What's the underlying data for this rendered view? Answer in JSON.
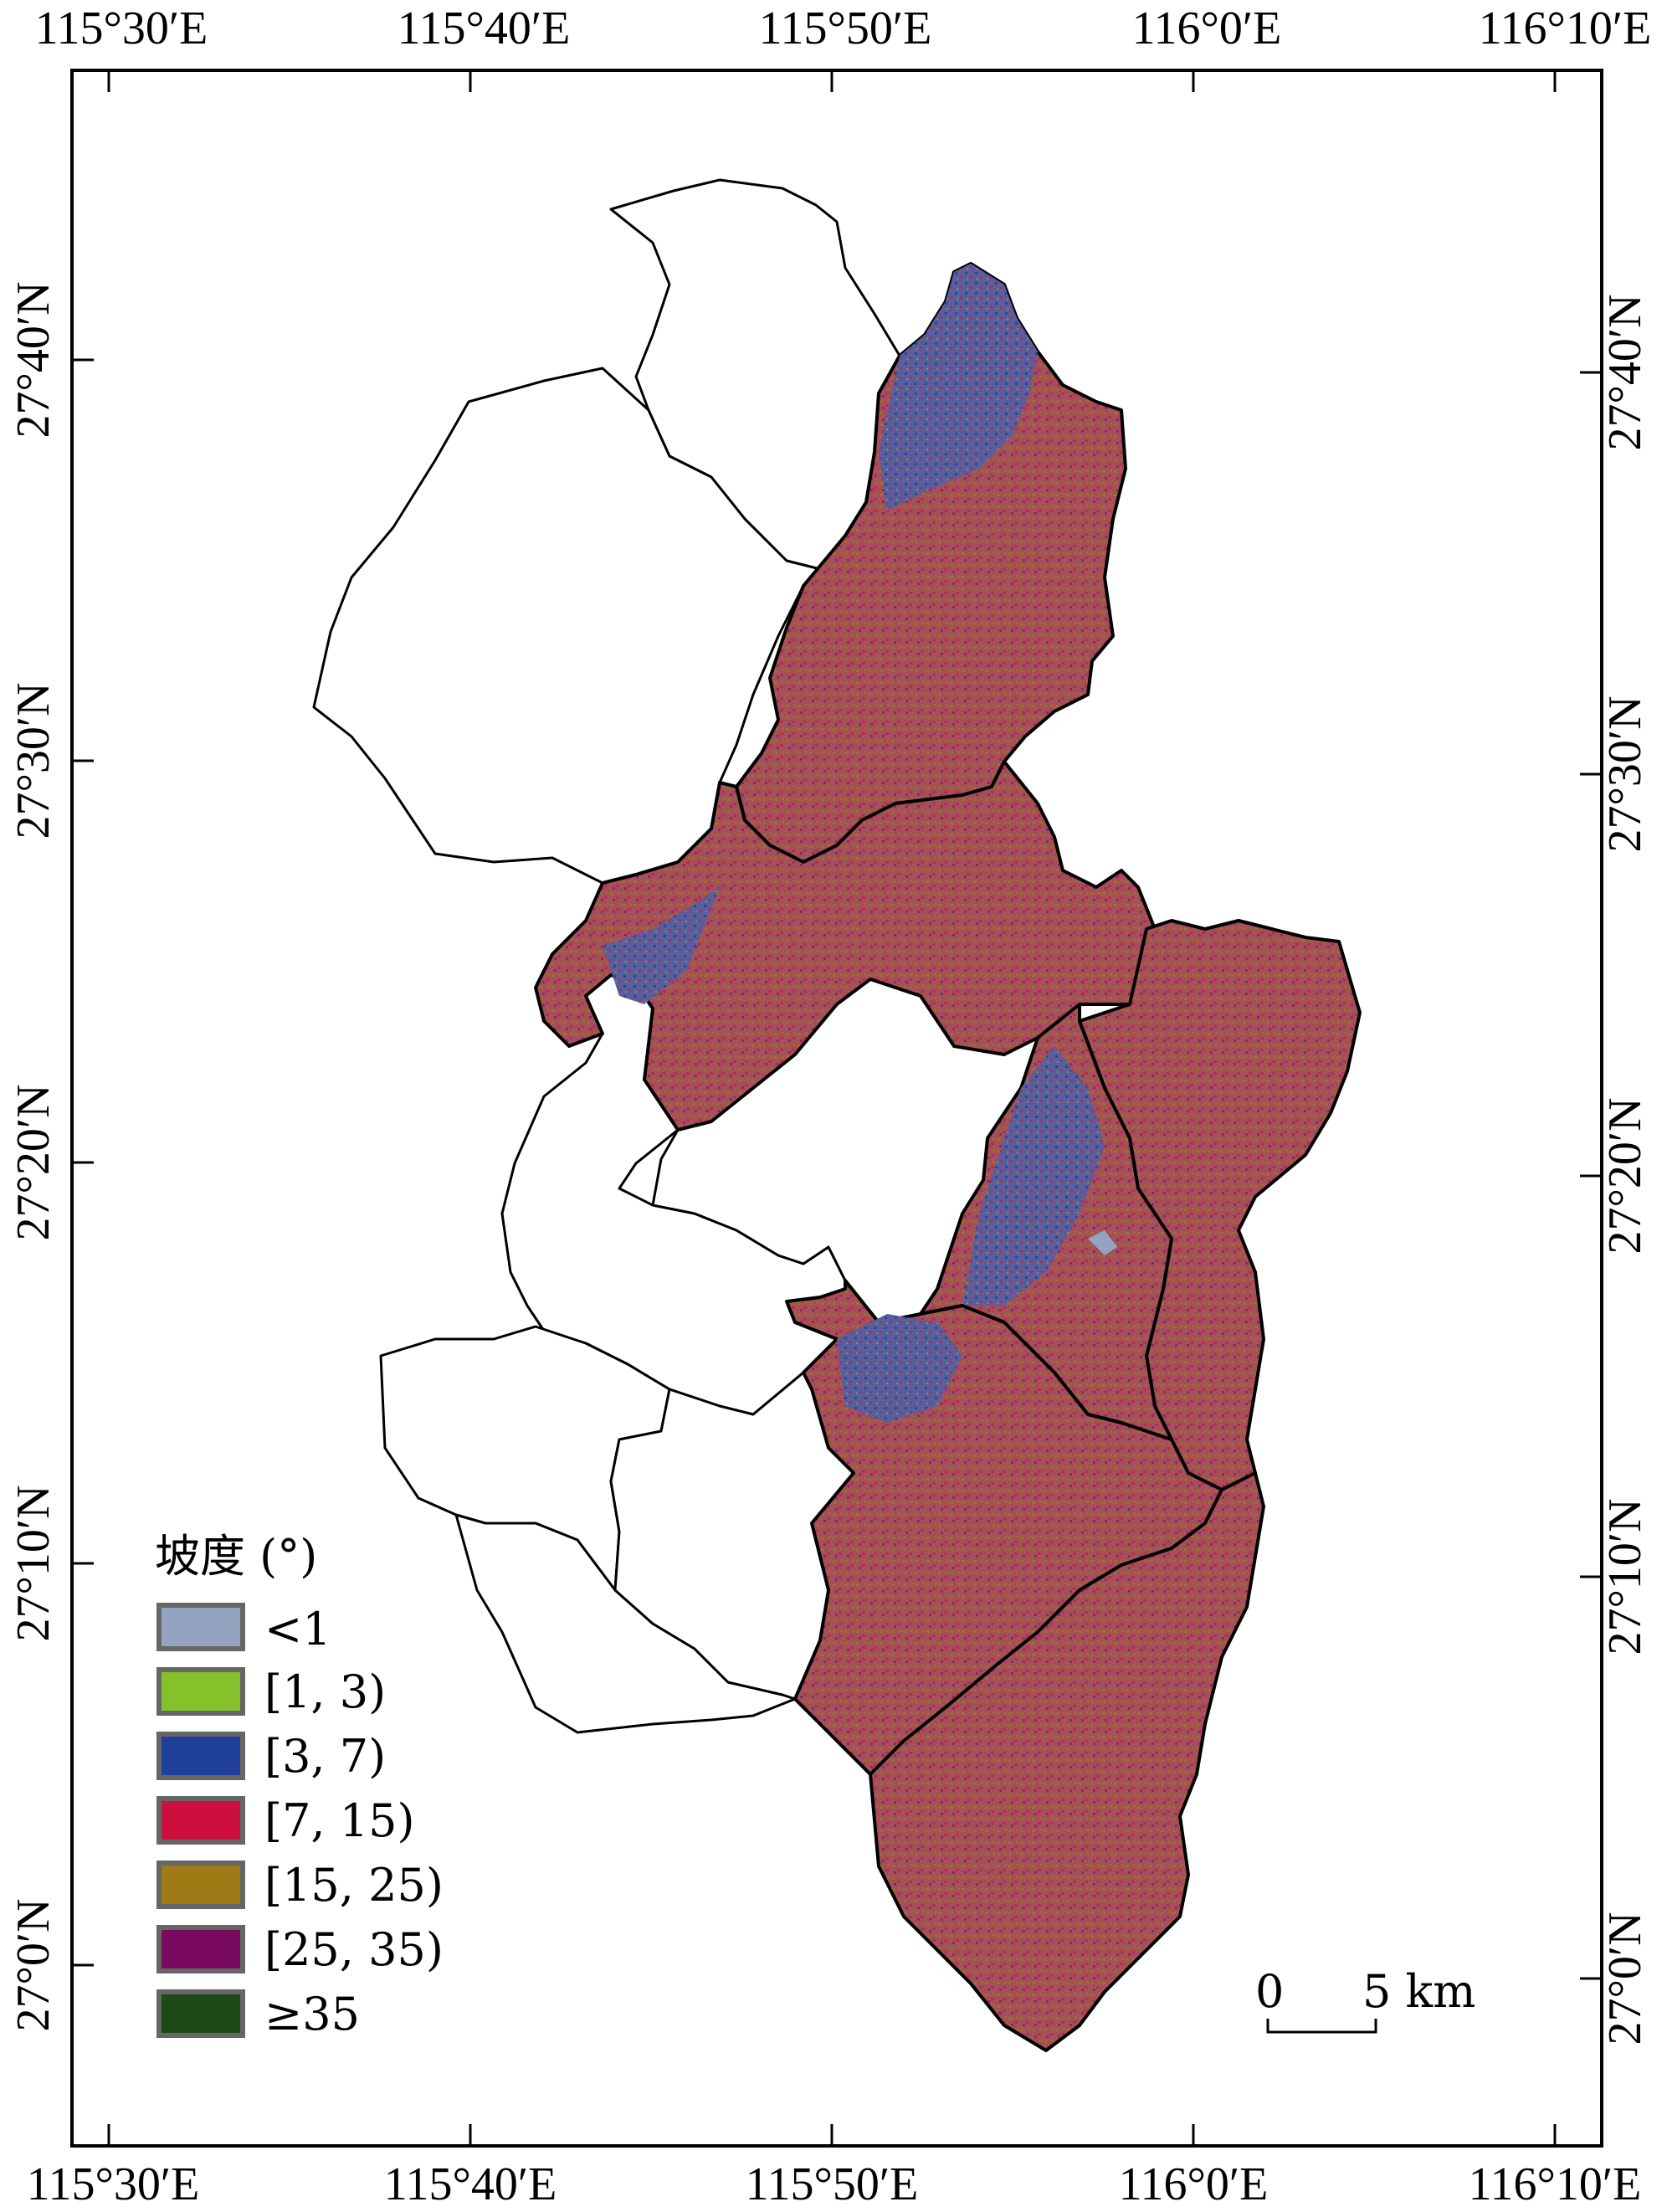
{
  "map": {
    "lon_labels": [
      "115°30′E",
      "115°40′E",
      "115°50′E",
      "116°0′E",
      "116°10′E"
    ],
    "lat_labels": [
      "27°40′N",
      "27°30′N",
      "27°20′N",
      "27°10′N",
      "27°0′N"
    ],
    "legend": {
      "title": "坡度 (°)",
      "items": [
        {
          "label": "<1",
          "color": "#93a3c0"
        },
        {
          "label": "[1, 3)",
          "color": "#84c12a"
        },
        {
          "label": "[3, 7)",
          "color": "#1f3f9a"
        },
        {
          "label": "[7, 15)",
          "color": "#cc0f3f"
        },
        {
          "label": "[15, 25)",
          "color": "#a07a14"
        },
        {
          "label": "[25, 35)",
          "color": "#7a0a5e"
        },
        {
          "label": "≥35",
          "color": "#1b4a14"
        }
      ]
    },
    "scale_bar": {
      "start": "0",
      "end": "5 km"
    },
    "colors": {
      "region_fill": "#a04e58",
      "region_mix_blue": "#4e5c98",
      "boundary": "#000000"
    }
  }
}
